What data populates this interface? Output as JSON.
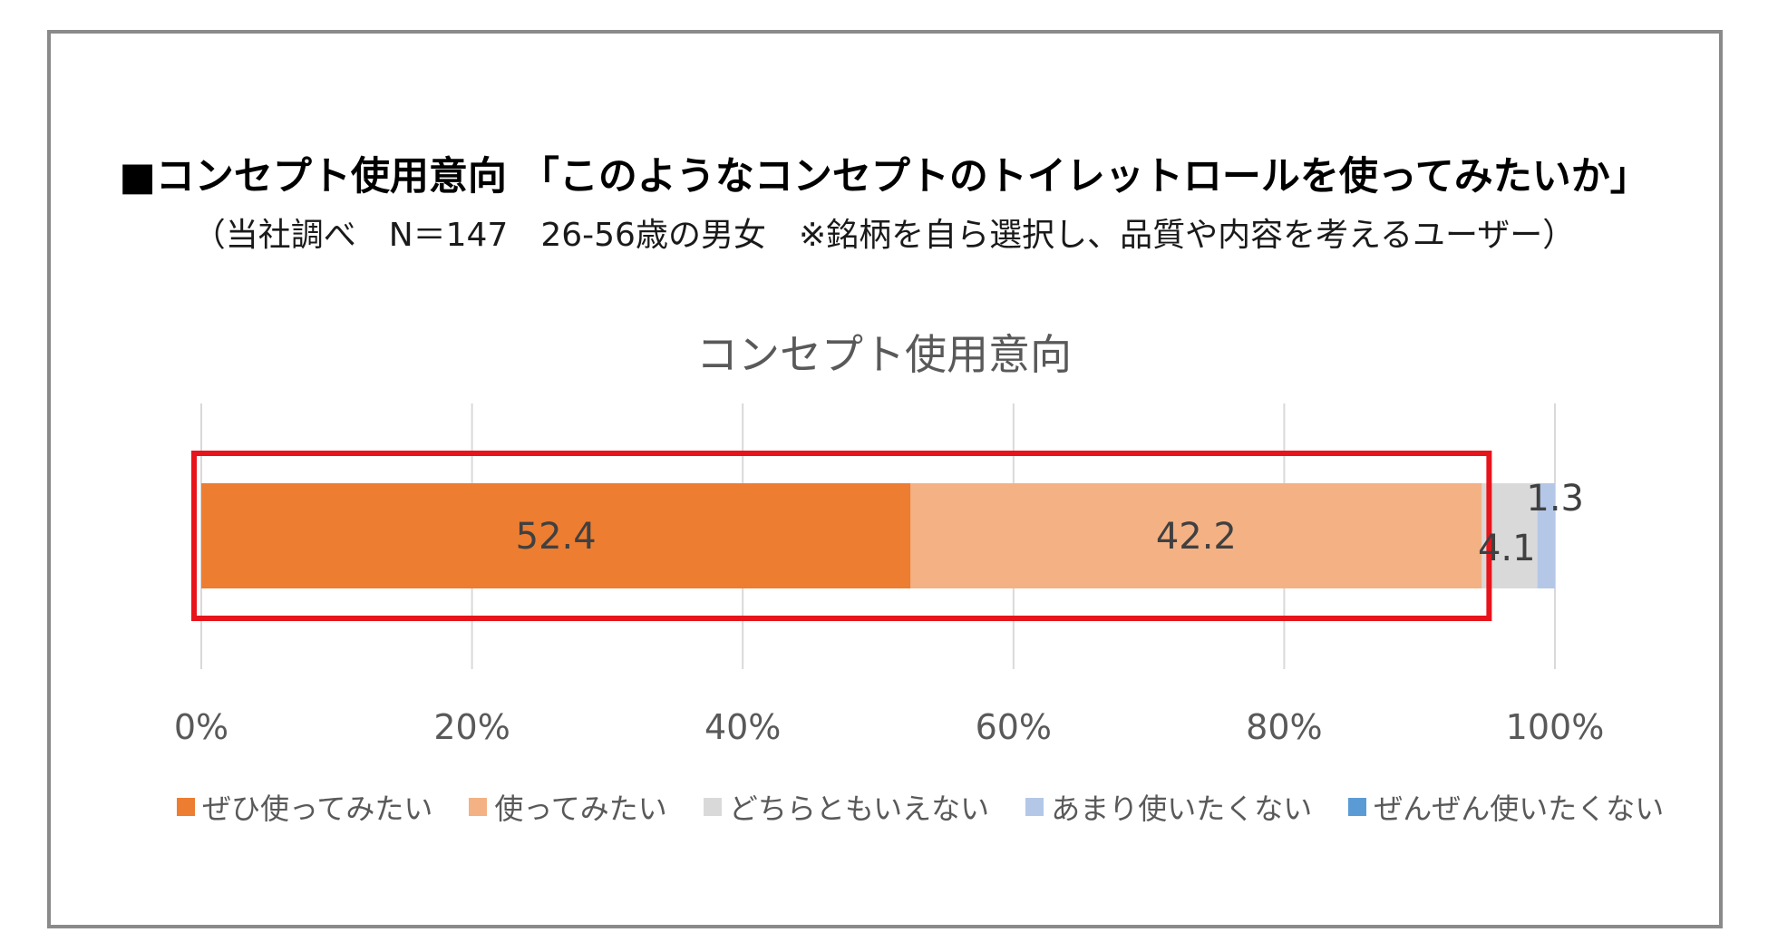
{
  "header": {
    "headline": "■コンセプト使用意向 「このようなコンセプトのトイレットロールを使ってみたいか」",
    "subline": "（当社調べ　N＝147　26-56歳の男女　※銘柄を自ら選択し、品質や内容を考えるユーザー）"
  },
  "chart_data": {
    "type": "bar",
    "orientation": "horizontal",
    "stacked": true,
    "title": "コンセプト使用意向",
    "xlim": [
      0,
      100
    ],
    "x_ticks": [
      "0%",
      "20%",
      "40%",
      "60%",
      "80%",
      "100%"
    ],
    "grid": true,
    "legend_position": "bottom",
    "series": [
      {
        "name": "ぜひ使ってみたい",
        "values": [
          52.4
        ],
        "label": "52.4",
        "color": "#ED7D31"
      },
      {
        "name": "使ってみたい",
        "values": [
          42.2
        ],
        "label": "42.2",
        "color": "#F4B183"
      },
      {
        "name": "どちらともいえない",
        "values": [
          4.1
        ],
        "label": "4.1",
        "color": "#D9D9D9"
      },
      {
        "name": "あまり使いたくない",
        "values": [
          1.3
        ],
        "label": "1.3",
        "color": "#B4C7E7"
      },
      {
        "name": "ぜんぜん使いたくない",
        "values": [
          0
        ],
        "label": "",
        "color": "#5B9BD5"
      }
    ],
    "highlight": {
      "from": 0,
      "to": 94.6,
      "color": "#E8141B"
    }
  }
}
